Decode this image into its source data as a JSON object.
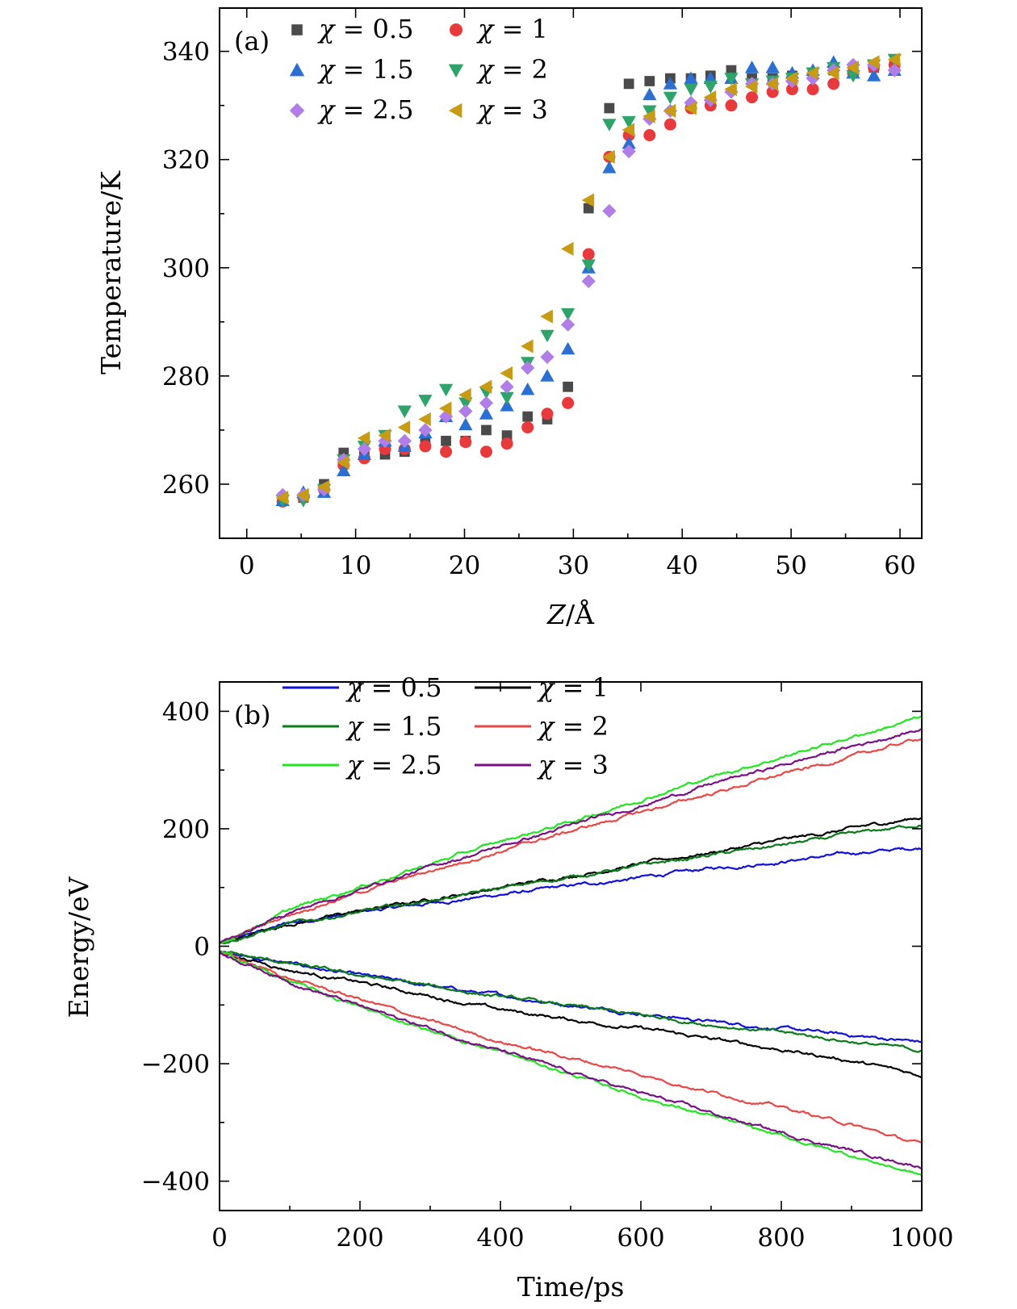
{
  "chart_data": [
    {
      "type": "scatter",
      "panel_label": "(a)",
      "xlabel_symbol": "Z",
      "xlabel_unit": "/Å",
      "ylabel": "Temperature/K",
      "xlim": [
        -2.5,
        62
      ],
      "ylim": [
        250,
        348
      ],
      "xticks": [
        0,
        10,
        20,
        30,
        40,
        50,
        60
      ],
      "xtick_labels": [
        "0",
        "10",
        "20",
        "30",
        "40",
        "50",
        "60"
      ],
      "yticks": [
        260,
        280,
        300,
        320,
        340
      ],
      "ytick_labels": [
        "260",
        "280",
        "300",
        "320",
        "340"
      ],
      "legend_position": "top-left",
      "x": [
        3.3,
        5.2,
        7.1,
        8.9,
        10.8,
        12.7,
        14.5,
        16.4,
        18.3,
        20.1,
        22.0,
        23.9,
        25.8,
        27.6,
        29.5,
        31.4,
        33.3,
        35.1,
        37.0,
        38.9,
        40.8,
        42.6,
        44.5,
        46.4,
        48.3,
        50.1,
        52.0,
        53.9,
        55.7,
        57.6,
        59.5
      ],
      "series": [
        {
          "name": "χ = 0.5",
          "chi": "χ",
          "eq": " = 0.5",
          "color": "#4a4a4a",
          "marker": "square",
          "values": [
            257.5,
            257.5,
            260.0,
            265.8,
            266.0,
            265.5,
            266.0,
            268.0,
            268.0,
            268.0,
            270.0,
            269.0,
            272.5,
            272.0,
            278.0,
            311.0,
            329.5,
            334.0,
            334.5,
            335.0,
            335.0,
            335.5,
            336.5,
            335.0,
            335.0,
            335.5,
            336.0,
            336.5,
            337.0,
            337.0,
            337.5
          ]
        },
        {
          "name": "χ = 1",
          "chi": "χ",
          "eq": " = 1",
          "color": "#e8393c",
          "marker": "circle",
          "values": [
            256.8,
            257.5,
            259.0,
            263.5,
            264.8,
            266.5,
            266.5,
            267.0,
            266.0,
            267.8,
            266.0,
            267.5,
            270.5,
            273.0,
            275.0,
            302.5,
            320.5,
            324.5,
            324.5,
            326.5,
            329.5,
            330.0,
            330.0,
            331.5,
            332.5,
            333.0,
            333.0,
            334.0,
            336.0,
            337.0,
            337.5
          ]
        },
        {
          "name": "χ = 1.5",
          "chi": "χ",
          "eq": " = 1.5",
          "color": "#2a6fd1",
          "marker": "triangle-up",
          "values": [
            257.0,
            258.5,
            258.5,
            262.5,
            265.5,
            268.0,
            267.0,
            269.5,
            272.5,
            271.0,
            273.0,
            274.5,
            277.5,
            280.0,
            285.0,
            300.0,
            318.5,
            323.0,
            332.0,
            334.0,
            335.0,
            335.0,
            335.0,
            337.0,
            337.0,
            336.0,
            336.5,
            338.0,
            336.0,
            335.5,
            336.5
          ]
        },
        {
          "name": "χ = 2",
          "chi": "χ",
          "eq": " = 2",
          "color": "#2ea36a",
          "marker": "triangle-down",
          "values": [
            257.0,
            257.0,
            259.0,
            264.5,
            267.0,
            269.0,
            273.5,
            275.5,
            277.5,
            275.0,
            277.0,
            276.0,
            282.5,
            287.5,
            291.5,
            300.5,
            326.5,
            327.0,
            329.0,
            331.5,
            333.0,
            333.5,
            335.0,
            334.0,
            334.5,
            335.0,
            336.0,
            337.0,
            335.5,
            337.5,
            338.5
          ]
        },
        {
          "name": "χ = 2.5",
          "chi": "χ",
          "eq": " = 2.5",
          "color": "#b07ee6",
          "marker": "diamond",
          "values": [
            258.0,
            258.0,
            259.0,
            264.5,
            266.5,
            268.0,
            268.0,
            270.0,
            272.5,
            273.5,
            275.0,
            278.0,
            281.5,
            283.5,
            289.5,
            297.5,
            310.5,
            321.5,
            327.5,
            329.0,
            330.5,
            331.0,
            332.5,
            334.0,
            334.0,
            334.5,
            335.0,
            336.5,
            337.5,
            337.5,
            336.5
          ]
        },
        {
          "name": "χ = 3",
          "chi": "χ",
          "eq": " = 3",
          "color": "#c89b14",
          "marker": "triangle-left",
          "values": [
            257.5,
            258.0,
            259.5,
            264.0,
            268.5,
            269.0,
            270.5,
            272.0,
            274.0,
            276.5,
            278.0,
            280.5,
            285.5,
            291.0,
            303.5,
            312.5,
            320.5,
            325.5,
            328.0,
            329.0,
            329.5,
            331.5,
            333.0,
            333.5,
            334.0,
            335.0,
            336.0,
            336.0,
            337.0,
            338.0,
            338.5
          ]
        }
      ]
    },
    {
      "type": "line",
      "panel_label": "(b)",
      "xlabel": "Time/ps",
      "ylabel": "Energy/eV",
      "xlim": [
        0,
        1000
      ],
      "ylim": [
        -450,
        450
      ],
      "xticks": [
        0,
        200,
        400,
        600,
        800,
        1000
      ],
      "xtick_labels": [
        "0",
        "200",
        "400",
        "600",
        "800",
        "1000"
      ],
      "yticks": [
        -400,
        -200,
        0,
        200,
        400
      ],
      "ytick_labels": [
        "−400",
        "−200",
        "0",
        "200",
        "400"
      ],
      "legend_position": "top-left",
      "x": [
        0,
        100,
        200,
        300,
        400,
        500,
        600,
        700,
        800,
        900,
        1000
      ],
      "series": [
        {
          "name": "χ = 0.5",
          "chi": "χ",
          "eq": " = 0.5",
          "color": "#1010d8",
          "upper": [
            5,
            40,
            58,
            73,
            88,
            102,
            117,
            132,
            145,
            158,
            168
          ],
          "lower": [
            -10,
            -30,
            -50,
            -68,
            -84,
            -100,
            -114,
            -128,
            -140,
            -152,
            -163
          ]
        },
        {
          "name": "χ = 1",
          "chi": "χ",
          "eq": " = 1",
          "color": "#000000",
          "upper": [
            5,
            38,
            60,
            80,
            100,
            120,
            140,
            160,
            180,
            200,
            220
          ],
          "lower": [
            -10,
            -40,
            -62,
            -85,
            -108,
            -125,
            -140,
            -158,
            -176,
            -195,
            -220
          ]
        },
        {
          "name": "χ = 1.5",
          "chi": "χ",
          "eq": " = 1.5",
          "color": "#0b7a1a",
          "upper": [
            5,
            38,
            58,
            78,
            98,
            118,
            137,
            155,
            172,
            190,
            208
          ],
          "lower": [
            -10,
            -30,
            -50,
            -68,
            -86,
            -102,
            -118,
            -133,
            -147,
            -162,
            -178
          ]
        },
        {
          "name": "χ = 2",
          "chi": "χ",
          "eq": " = 2",
          "color": "#e84747",
          "upper": [
            5,
            55,
            92,
            128,
            162,
            196,
            228,
            260,
            292,
            322,
            355
          ],
          "lower": [
            -10,
            -55,
            -90,
            -128,
            -162,
            -190,
            -218,
            -248,
            -274,
            -304,
            -338
          ]
        },
        {
          "name": "χ = 2.5",
          "chi": "χ",
          "eq": " = 2.5",
          "color": "#22e522",
          "upper": [
            5,
            62,
            102,
            140,
            178,
            212,
            250,
            288,
            322,
            356,
            390
          ],
          "lower": [
            -10,
            -60,
            -104,
            -144,
            -180,
            -218,
            -256,
            -290,
            -324,
            -356,
            -390
          ]
        },
        {
          "name": "χ = 3",
          "chi": "χ",
          "eq": " = 3",
          "color": "#7a0f86",
          "upper": [
            5,
            58,
            96,
            135,
            170,
            205,
            240,
            276,
            308,
            340,
            370
          ],
          "lower": [
            -10,
            -60,
            -102,
            -140,
            -178,
            -215,
            -250,
            -284,
            -318,
            -348,
            -375
          ]
        }
      ]
    }
  ]
}
